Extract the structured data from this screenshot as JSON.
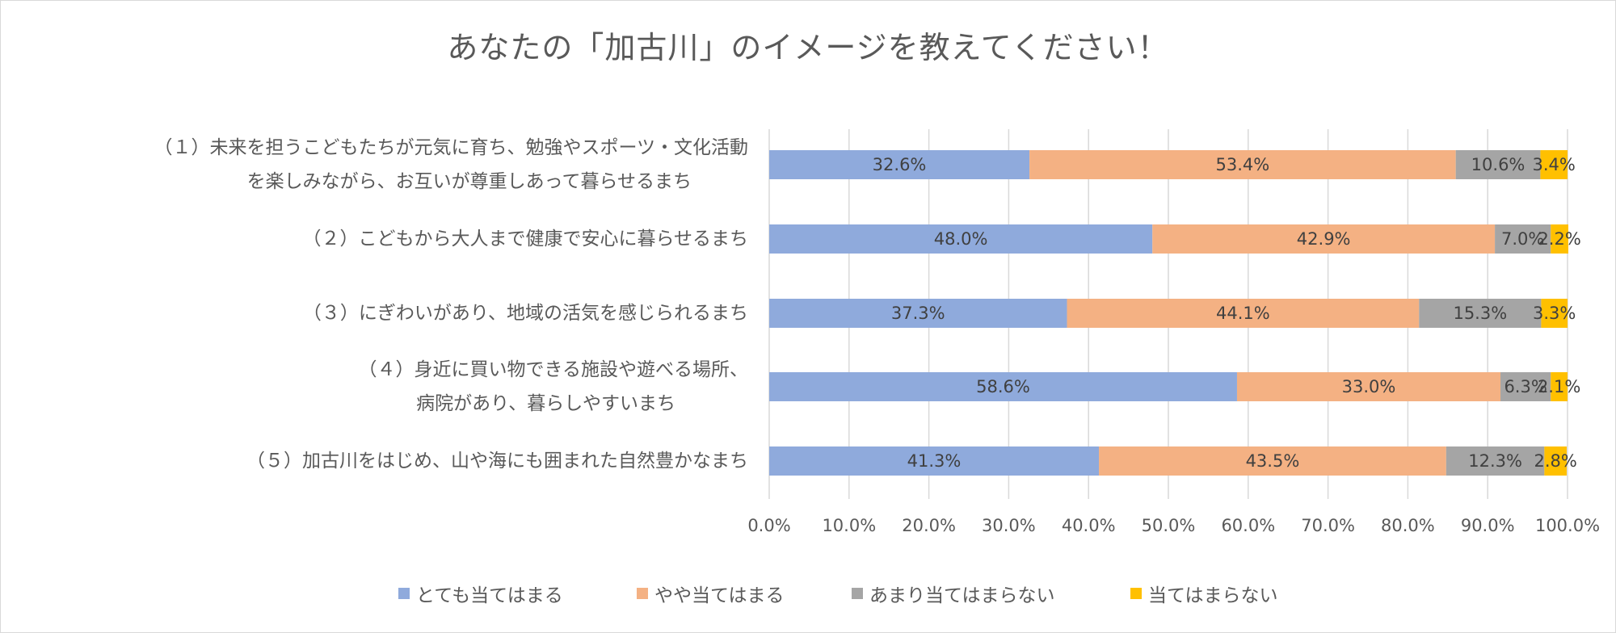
{
  "chart_data": {
    "type": "bar",
    "orientation": "horizontal",
    "stacked": true,
    "title": "あなたの「加古川」のイメージを教えてください！",
    "categories": [
      [
        "（１）未来を担うこどもたちが元気に育ち、勉強やスポーツ・文化活動",
        "を楽しみながら、お互いが尊重しあって暮らせるまち"
      ],
      [
        "（２）こどもから大人まで健康で安心に暮らせるまち"
      ],
      [
        "（３）にぎわいがあり、地域の活気を感じられるまち"
      ],
      [
        "（４）身近に買い物できる施設や遊べる場所、",
        "病院があり、暮らしやすいまち"
      ],
      [
        "（５）加古川をはじめ、山や海にも囲まれた自然豊かなまち"
      ]
    ],
    "series": [
      {
        "name": "とても当てはまる",
        "color": "#8faadc",
        "values": [
          32.6,
          48.0,
          37.3,
          58.6,
          41.3
        ],
        "labels": [
          "32.6%",
          "48.0%",
          "37.3%",
          "58.6%",
          "41.3%"
        ]
      },
      {
        "name": "やや当てはまる",
        "color": "#f4b183",
        "values": [
          53.4,
          42.9,
          44.1,
          33.0,
          43.5
        ],
        "labels": [
          "53.4%",
          "42.9%",
          "44.1%",
          "33.0%",
          "43.5%"
        ]
      },
      {
        "name": "あまり当てはまらない",
        "color": "#a5a5a5",
        "values": [
          10.6,
          7.0,
          15.3,
          6.3,
          12.3
        ],
        "labels": [
          "10.6%",
          "7.0%",
          "15.3%",
          "6.3%",
          "12.3%"
        ]
      },
      {
        "name": "当てはまらない",
        "color": "#ffc000",
        "values": [
          3.4,
          2.2,
          3.3,
          2.1,
          2.8
        ],
        "labels": [
          "3.4%",
          "2.2%",
          "3.3%",
          "2.1%",
          "2.8%"
        ]
      }
    ],
    "xlim": [
      0,
      100
    ],
    "xticks": [
      "0.0%",
      "10.0%",
      "20.0%",
      "30.0%",
      "40.0%",
      "50.0%",
      "60.0%",
      "70.0%",
      "80.0%",
      "90.0%",
      "100.0%"
    ],
    "grid": true,
    "legend": "bottom",
    "gridColor": "#d9d9d9",
    "textColor": "#595959",
    "labelColor": "#404040"
  }
}
